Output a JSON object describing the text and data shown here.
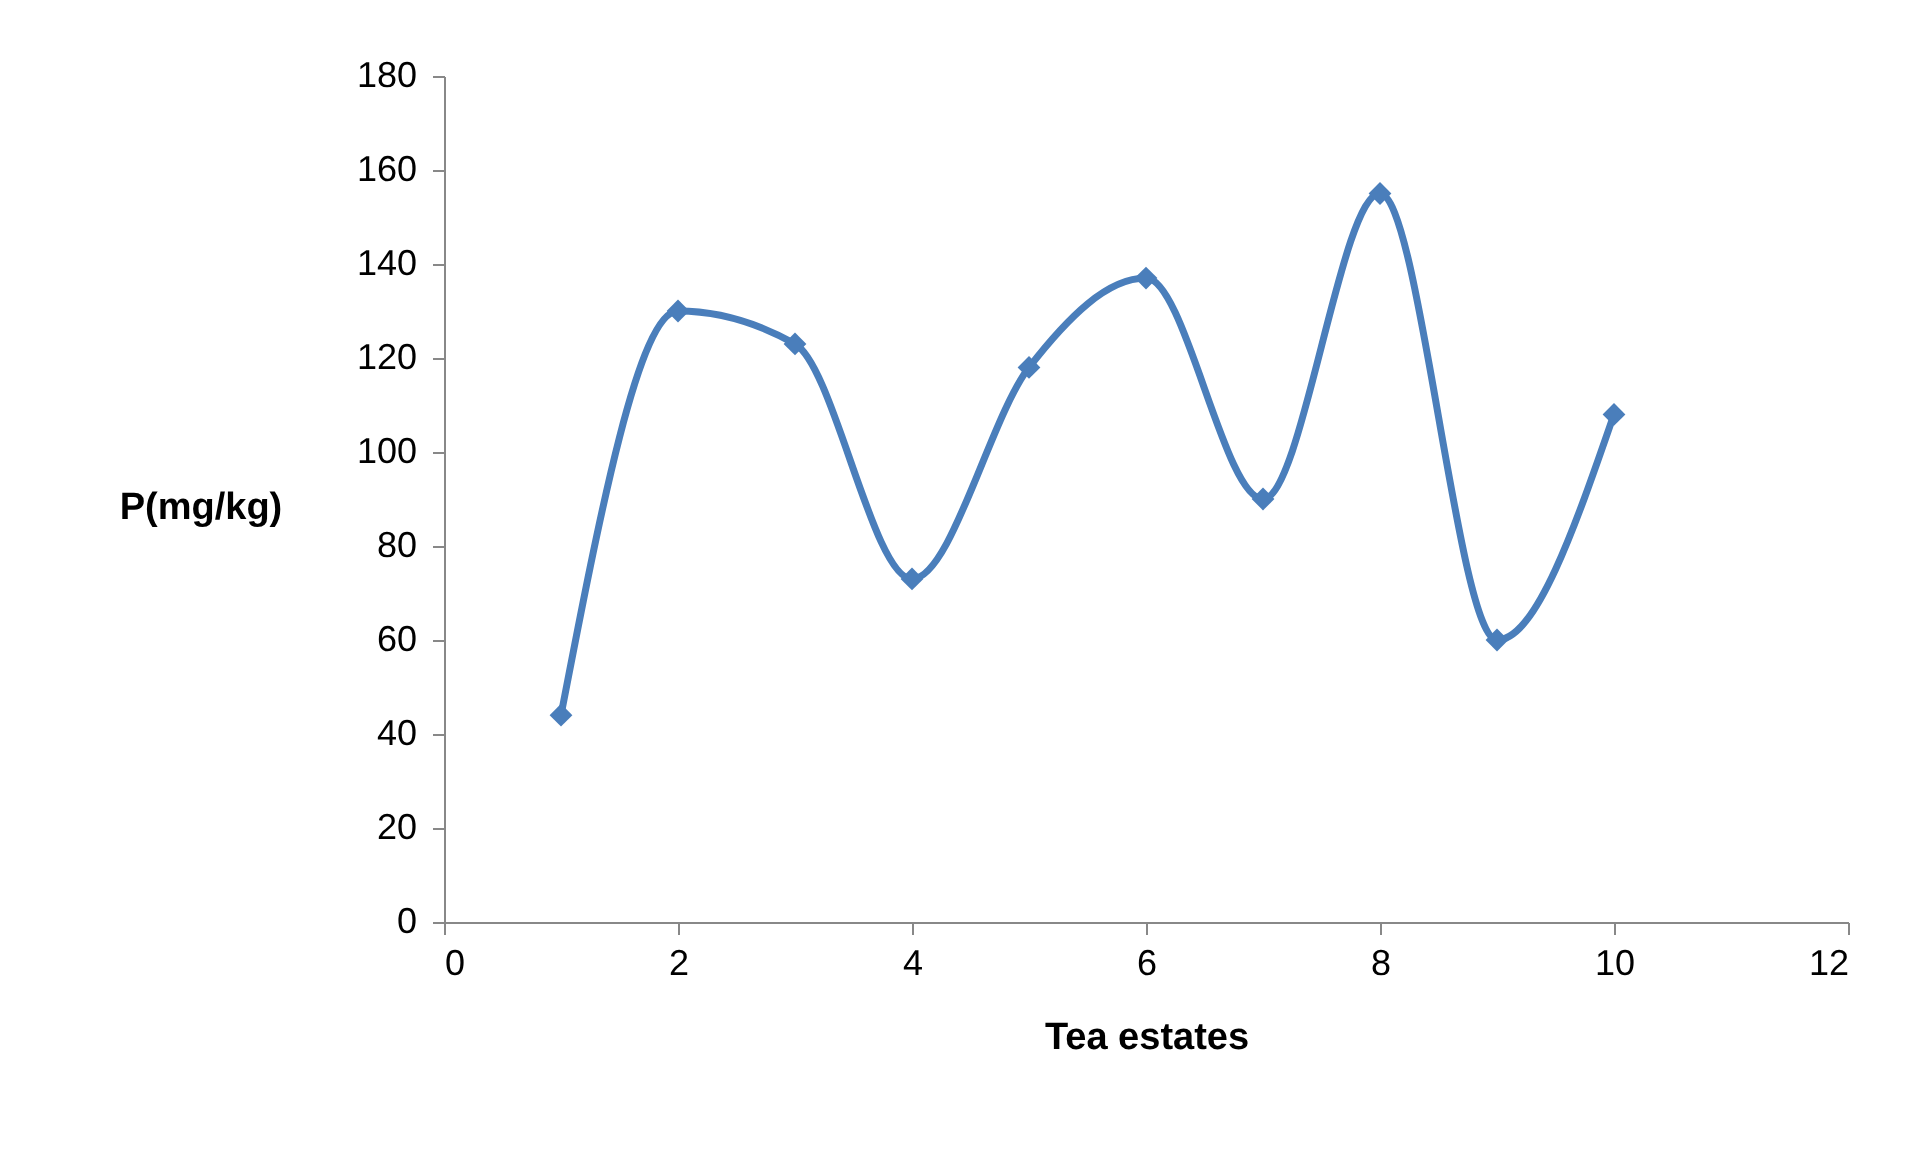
{
  "chart_data": {
    "type": "line",
    "xlabel": "Tea estates",
    "ylabel": "P(mg/kg)",
    "x": [
      1,
      2,
      3,
      4,
      5,
      6,
      7,
      8,
      9,
      10
    ],
    "series": [
      {
        "color": "#4a7ebb",
        "values": [
          44,
          130,
          123,
          73,
          118,
          137,
          90,
          155,
          60,
          108
        ]
      }
    ],
    "xlim": [
      0,
      12
    ],
    "xticks": [
      0,
      2,
      4,
      6,
      8,
      10,
      12
    ],
    "ylim": [
      0,
      180
    ],
    "yticks": [
      0,
      20,
      40,
      60,
      80,
      100,
      120,
      140,
      160,
      180
    ],
    "grid": false,
    "marker": "diamond",
    "line_style": "solid"
  }
}
